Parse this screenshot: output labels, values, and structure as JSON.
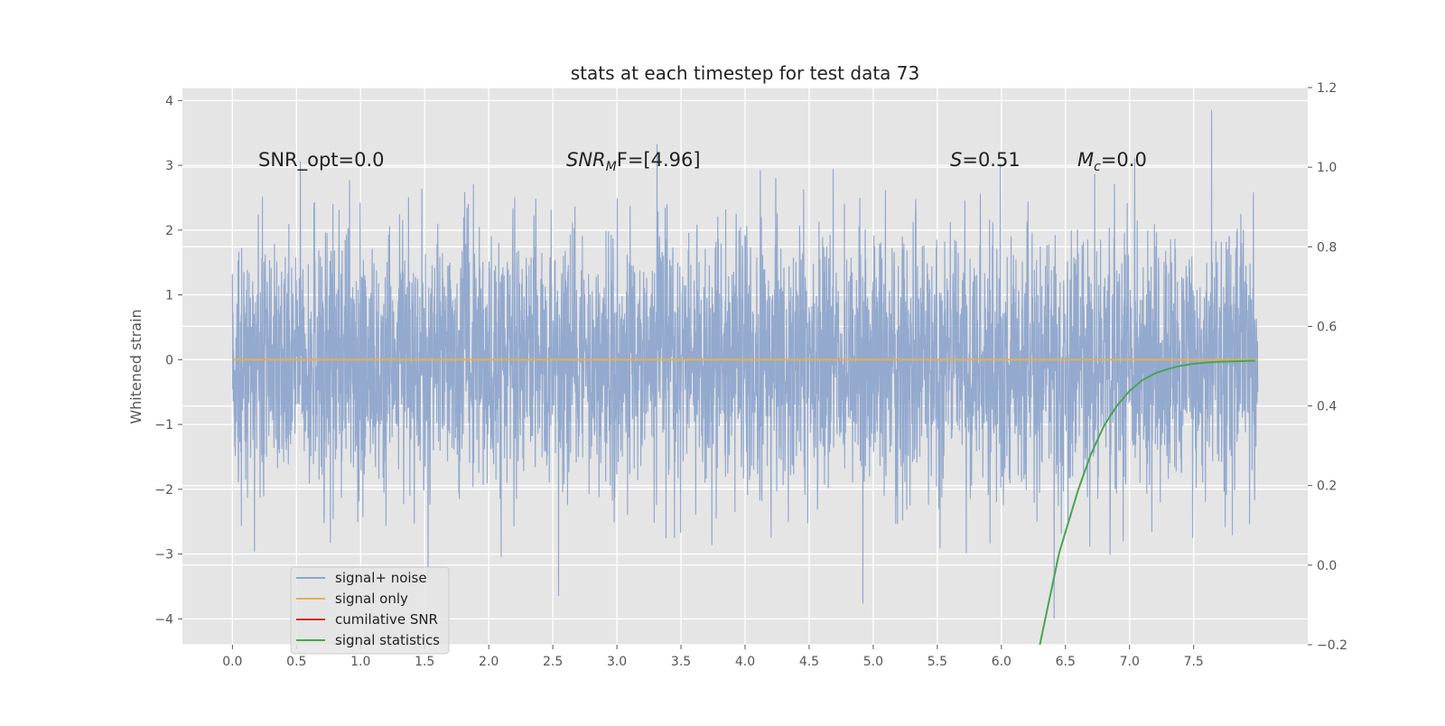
{
  "chart_data": {
    "type": "line",
    "title": "stats at each timestep for test data 73",
    "xlabel": "",
    "ylabel": "Whitened strain",
    "y2label": "",
    "xlim": [
      -0.39,
      8.39
    ],
    "ylim": [
      -4.4,
      4.2
    ],
    "y2lim": [
      -0.2,
      1.2
    ],
    "xticks": [
      "0.0",
      "0.5",
      "1.0",
      "1.5",
      "2.0",
      "2.5",
      "3.0",
      "3.5",
      "4.0",
      "4.5",
      "5.0",
      "5.5",
      "6.0",
      "6.5",
      "7.0",
      "7.5"
    ],
    "xtick_values": [
      0,
      0.5,
      1,
      1.5,
      2,
      2.5,
      3,
      3.5,
      4,
      4.5,
      5,
      5.5,
      6,
      6.5,
      7,
      7.5
    ],
    "yticks": [
      "4",
      "3",
      "2",
      "1",
      "0",
      "−1",
      "−2",
      "−3",
      "−4"
    ],
    "ytick_values": [
      4,
      3,
      2,
      1,
      0,
      -1,
      -2,
      -3,
      -4
    ],
    "y2ticks": [
      "1.2",
      "1.0",
      "0.8",
      "0.6",
      "0.4",
      "0.2",
      "0.0",
      "−0.2"
    ],
    "y2tick_values": [
      1.2,
      1.0,
      0.8,
      0.6,
      0.4,
      0.2,
      0.0,
      -0.2
    ],
    "grid": true,
    "background": "#e5e5e5",
    "legend_placement": "lower-left",
    "annotations": {
      "snr_opt": "SNR_opt=0.0",
      "snr_mf_main": "SNR",
      "snr_mf_sub": "M",
      "snr_mf_rest": "F=[4.96]",
      "s_main": "S",
      "s_rest": "=0.51",
      "mc_main": "M",
      "mc_sub": "c",
      "mc_rest": "=0.0"
    },
    "series": [
      {
        "name": "signal+ noise",
        "color": "#8ea5cc",
        "axis": "left",
        "description_range": [
          0.0,
          8.0
        ],
        "amplitude_sigma": 1.0
      },
      {
        "name": "signal only",
        "color": "#e8b04c",
        "axis": "left",
        "x": [
          0.0,
          8.0
        ],
        "y": [
          0.0,
          0.0
        ]
      },
      {
        "name": "cumilative SNR",
        "color": "#d62a20",
        "axis": "right",
        "x": [],
        "y": []
      },
      {
        "name": "signal statistics",
        "color": "#4aa352",
        "axis": "right",
        "x": [
          6.3,
          6.45,
          6.6,
          6.7,
          6.8,
          6.9,
          7.0,
          7.1,
          7.2,
          7.3,
          7.4,
          7.5,
          7.6,
          7.7,
          7.8,
          7.9,
          7.98
        ],
        "y": [
          -0.2,
          0.03,
          0.19,
          0.28,
          0.35,
          0.4,
          0.438,
          0.465,
          0.482,
          0.493,
          0.501,
          0.506,
          0.509,
          0.511,
          0.512,
          0.513,
          0.514
        ]
      }
    ]
  }
}
